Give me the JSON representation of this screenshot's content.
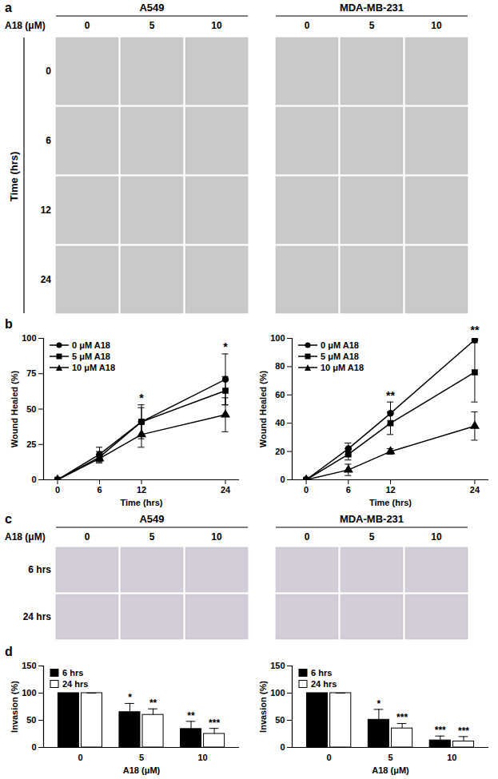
{
  "panel_labels": [
    "a",
    "b",
    "c",
    "d"
  ],
  "image_panels": [
    {
      "groups": [
        "A549",
        "MDA-MB-231"
      ],
      "column_title": "A18 (μM)",
      "columns": [
        "0",
        "5",
        "10"
      ],
      "row_title": "Time (hrs)",
      "rows": [
        "0",
        "6",
        "12",
        "24"
      ]
    },
    {
      "groups": [
        "A549",
        "MDA-MB-231"
      ],
      "column_title": "A18 (μM)",
      "columns": [
        "0",
        "5",
        "10"
      ],
      "rows": [
        "6 hrs",
        "24 hrs"
      ]
    }
  ],
  "chart_data": [
    {
      "type": "line",
      "x": [
        0,
        6,
        12,
        24
      ],
      "xlim": [
        -2,
        26
      ],
      "xticks": [
        0,
        6,
        12,
        24
      ],
      "ylim": [
        0,
        100
      ],
      "yticks": [
        0,
        25,
        50,
        75,
        100
      ],
      "x_label": "Time (hrs)",
      "y_label": "Wound Healed (%)",
      "legend": "top-left",
      "series": [
        {
          "name": "0 μM A18",
          "color": "#000000",
          "marker": "circle",
          "values": [
            0,
            18,
            41,
            71
          ],
          "errors": [
            0,
            5,
            12,
            18
          ]
        },
        {
          "name": "5 μM A18",
          "color": "#000000",
          "marker": "square",
          "values": [
            0,
            16,
            41,
            63
          ],
          "errors": [
            0,
            4,
            10,
            10
          ]
        },
        {
          "name": "10 μM A18",
          "color": "#000000",
          "marker": "triangle",
          "values": [
            0,
            15,
            32,
            46
          ],
          "errors": [
            0,
            3,
            9,
            12
          ]
        }
      ],
      "annotations": [
        {
          "x": 12,
          "text": "*"
        },
        {
          "x": 24,
          "text": "*"
        }
      ]
    },
    {
      "type": "line",
      "x": [
        0,
        6,
        12,
        24
      ],
      "xlim": [
        -2,
        26
      ],
      "xticks": [
        0,
        6,
        12,
        24
      ],
      "ylim": [
        0,
        100
      ],
      "yticks": [
        0,
        20,
        40,
        60,
        80,
        100
      ],
      "x_label": "Time (hrs)",
      "y_label": "Wound Healed (%)",
      "legend": "top-left",
      "series": [
        {
          "name": "0 μM A18",
          "color": "#000000",
          "marker": "circle",
          "values": [
            0,
            22,
            47,
            99
          ],
          "errors": [
            0,
            4,
            8,
            2
          ]
        },
        {
          "name": "5 μM A18",
          "color": "#000000",
          "marker": "square",
          "values": [
            0,
            18,
            40,
            76
          ],
          "errors": [
            0,
            4,
            8,
            21
          ]
        },
        {
          "name": "10 μM A18",
          "color": "#000000",
          "marker": "triangle",
          "values": [
            0,
            7,
            20,
            38
          ],
          "errors": [
            0,
            4,
            2,
            10
          ]
        }
      ],
      "annotations": [
        {
          "x": 12,
          "text": "**"
        },
        {
          "x": 24,
          "text": "**"
        }
      ]
    },
    {
      "type": "bar",
      "categories": [
        "0",
        "5",
        "10"
      ],
      "ylim": [
        0,
        150
      ],
      "yticks": [
        0,
        50,
        100,
        150
      ],
      "x_label": "A18 (μM)",
      "y_label": "Invasion (%)",
      "legend": "top-left",
      "series": [
        {
          "name": "6 hrs",
          "color": "#000000",
          "values": [
            100,
            65,
            34
          ],
          "errors": [
            0,
            16,
            14
          ],
          "significance": [
            null,
            "*",
            "**"
          ]
        },
        {
          "name": "24 hrs",
          "color": "#ffffff",
          "values": [
            100,
            60,
            25
          ],
          "errors": [
            0,
            11,
            10
          ],
          "significance": [
            null,
            "**",
            "***"
          ]
        }
      ]
    },
    {
      "type": "bar",
      "categories": [
        "0",
        "5",
        "10"
      ],
      "ylim": [
        0,
        150
      ],
      "yticks": [
        0,
        50,
        100,
        150
      ],
      "x_label": "A18 (μM)",
      "y_label": "Invasion (%)",
      "legend": "top-left",
      "series": [
        {
          "name": "6 hrs",
          "color": "#000000",
          "values": [
            100,
            51,
            13
          ],
          "errors": [
            0,
            19,
            8
          ],
          "significance": [
            null,
            "*",
            "***"
          ]
        },
        {
          "name": "24 hrs",
          "color": "#ffffff",
          "values": [
            100,
            35,
            11
          ],
          "errors": [
            0,
            9,
            9
          ],
          "significance": [
            null,
            "***",
            "***"
          ]
        }
      ]
    }
  ]
}
